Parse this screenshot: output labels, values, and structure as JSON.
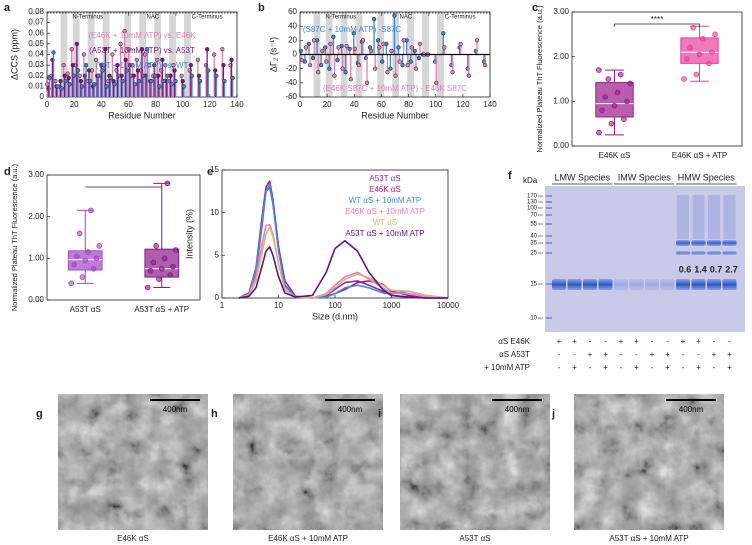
{
  "chart_data": [
    {
      "panel": "a",
      "type": "lollipop",
      "xlabel": "Residue Number",
      "ylabel": "ΔCCS (ppm)",
      "xlim": [
        0,
        140
      ],
      "xticks": [
        0,
        20,
        40,
        60,
        80,
        100,
        120,
        140
      ],
      "ylim": [
        0,
        0.08
      ],
      "yticks": [
        0,
        0.01,
        0.02,
        0.03,
        0.04,
        0.05,
        0.06,
        0.07,
        0.08
      ],
      "regions": [
        {
          "label": "N-Terminus",
          "range": [
            0,
            60
          ]
        },
        {
          "label": "NAC",
          "range": [
            61,
            95
          ]
        },
        {
          "label": "C-Terminus",
          "range": [
            96,
            140
          ]
        }
      ],
      "shaded": [
        [
          10,
          15
        ],
        [
          19,
          24
        ],
        [
          30,
          35
        ],
        [
          41,
          46
        ],
        [
          57,
          62
        ],
        [
          68,
          73
        ],
        [
          79,
          84
        ],
        [
          90,
          95
        ],
        [
          101,
          106
        ]
      ],
      "x": [
        1,
        4,
        7,
        10,
        13,
        16,
        19,
        22,
        25,
        28,
        31,
        34,
        37,
        40,
        43,
        46,
        49,
        52,
        55,
        58,
        61,
        64,
        67,
        70,
        73,
        76,
        79,
        82,
        85,
        88,
        91,
        94,
        100,
        106,
        112,
        118,
        124,
        130,
        136
      ],
      "series": [
        {
          "name": "(E46K + 10mM ATP) vs. E46K",
          "color": "#e57db5",
          "values": [
            0.012,
            0.02,
            0.015,
            0.01,
            0.03,
            0.022,
            0.045,
            0.03,
            0.02,
            0.04,
            0.015,
            0.025,
            0.035,
            0.02,
            0.03,
            0.015,
            0.04,
            0.025,
            0.05,
            0.062,
            0.045,
            0.03,
            0.035,
            0.025,
            0.04,
            0.03,
            0.02,
            0.035,
            0.025,
            0.03,
            0.015,
            0.03,
            0.02,
            0.025,
            0.035,
            0.03,
            0.04,
            0.045,
            0.03
          ]
        },
        {
          "name": "(A53T + 10mM ATP) vs. A53T",
          "color": "#7b1a7e",
          "values": [
            0.008,
            0.035,
            0.01,
            0.015,
            0.02,
            0.018,
            0.03,
            0.05,
            0.015,
            0.02,
            0.025,
            0.01,
            0.02,
            0.03,
            0.045,
            0.02,
            0.015,
            0.03,
            0.02,
            0.035,
            0.03,
            0.02,
            0.025,
            0.045,
            0.02,
            0.015,
            0.03,
            0.02,
            0.035,
            0.015,
            0.02,
            0.025,
            0.015,
            0.03,
            0.02,
            0.045,
            0.025,
            0.03,
            0.035
          ]
        },
        {
          "name": "(WT + 10mM ATP) vs. WT",
          "color": "#3d87d4",
          "values": [
            0.018,
            0.042,
            0.01,
            0.008,
            0.015,
            0.012,
            0.02,
            0.025,
            0.01,
            0.03,
            0.015,
            0.012,
            0.02,
            0.025,
            0.01,
            0.018,
            0.012,
            0.02,
            0.015,
            0.025,
            0.02,
            0.012,
            0.015,
            0.02,
            0.045,
            0.015,
            0.02,
            0.01,
            0.015,
            0.02,
            0.012,
            0.015,
            0.01,
            0.02,
            0.015,
            0.025,
            0.02,
            0.015,
            0.018
          ]
        }
      ]
    },
    {
      "panel": "b",
      "type": "lollipop",
      "xlabel": "Residue Number",
      "ylabel": "ΔΓ₂ (s⁻¹)",
      "xlim": [
        0,
        140
      ],
      "xticks": [
        0,
        20,
        40,
        60,
        80,
        100,
        120,
        140
      ],
      "ylim": [
        -60,
        60
      ],
      "yticks": [
        -60,
        -40,
        -20,
        0,
        20,
        40,
        60
      ],
      "regions": [
        {
          "label": "N-Terminus",
          "range": [
            0,
            60
          ]
        },
        {
          "label": "NAC",
          "range": [
            61,
            95
          ]
        },
        {
          "label": "C-Terminus",
          "range": [
            96,
            140
          ]
        }
      ],
      "shaded": [
        [
          10,
          15
        ],
        [
          19,
          24
        ],
        [
          30,
          35
        ],
        [
          41,
          46
        ],
        [
          57,
          62
        ],
        [
          68,
          73
        ],
        [
          79,
          84
        ],
        [
          90,
          95
        ],
        [
          101,
          106
        ]
      ],
      "x": [
        1,
        4,
        7,
        10,
        13,
        16,
        19,
        22,
        25,
        28,
        31,
        34,
        37,
        40,
        43,
        46,
        49,
        52,
        55,
        58,
        61,
        64,
        67,
        70,
        73,
        76,
        79,
        82,
        85,
        88,
        91,
        94,
        100,
        106,
        112,
        118,
        124,
        130,
        136
      ],
      "series": [
        {
          "name": "(S87C + 10mM ATP) -S87C",
          "color": "#3d87d4",
          "values": [
            5,
            -10,
            15,
            -5,
            20,
            -15,
            10,
            -20,
            25,
            -8,
            12,
            -25,
            8,
            30,
            -12,
            18,
            -5,
            10,
            50,
            20,
            -10,
            15,
            -20,
            55,
            10,
            -15,
            20,
            -10,
            5,
            -5,
            0,
            0,
            -10,
            30,
            -15,
            10,
            -20,
            5,
            -10
          ]
        },
        {
          "name": "(E46K S87C + 10mM ATP) - E46K S87C",
          "color": "#e57db5",
          "values": [
            -8,
            10,
            -15,
            20,
            -25,
            5,
            -10,
            15,
            -30,
            10,
            -20,
            12,
            -35,
            8,
            -15,
            20,
            -40,
            5,
            -20,
            10,
            15,
            -25,
            5,
            -30,
            -10,
            20,
            -15,
            10,
            -20,
            15,
            0,
            0,
            -40,
            10,
            -25,
            15,
            -30,
            20,
            -15
          ]
        }
      ]
    },
    {
      "panel": "c",
      "type": "box",
      "ylabel": "Normalized Plateau ThT Fluorescence (a.u.)",
      "annotation": "****",
      "ylim": [
        0,
        3
      ],
      "yticks": [
        {
          "value": 0,
          "label": "0.00"
        },
        {
          "value": 1,
          "label": "1.00"
        },
        {
          "value": 2,
          "label": "2.00"
        },
        {
          "value": 3,
          "label": "3.00"
        }
      ],
      "categories": [
        "E46K αS",
        "E46K αS + ATP"
      ],
      "boxes": [
        {
          "color": "#9b1a8a",
          "min": 0.25,
          "q1": 0.65,
          "median": 0.95,
          "q3": 1.42,
          "max": 1.7,
          "points": [
            0.3,
            0.5,
            0.6,
            0.8,
            0.9,
            1.0,
            1.1,
            1.2,
            1.4,
            1.5,
            1.6,
            1.7
          ]
        },
        {
          "color": "#e8409c",
          "min": 1.45,
          "q1": 1.85,
          "median": 2.1,
          "q3": 2.42,
          "max": 2.68,
          "points": [
            1.5,
            1.6,
            1.85,
            1.95,
            2.05,
            2.1,
            2.2,
            2.4,
            2.5,
            2.65
          ]
        }
      ]
    },
    {
      "panel": "d",
      "type": "box",
      "ylabel": "Normalized Plateau ThT Fluorescence (a.u.)",
      "ylim": [
        0,
        3
      ],
      "yticks": [
        {
          "value": 0,
          "label": "0.00"
        },
        {
          "value": 1,
          "label": "1.00"
        },
        {
          "value": 2,
          "label": "2.00"
        },
        {
          "value": 3,
          "label": "3.00"
        }
      ],
      "categories": [
        "A53T αS",
        "A53T αS + ATP"
      ],
      "boxes": [
        {
          "color": "#a447c4",
          "min": 0.4,
          "q1": 0.72,
          "median": 0.97,
          "q3": 1.18,
          "max": 2.15,
          "points": [
            0.4,
            0.55,
            0.75,
            0.85,
            0.95,
            1.0,
            1.05,
            1.15,
            1.3,
            1.6,
            2.15
          ]
        },
        {
          "color": "#8a1a8a",
          "min": 0.3,
          "q1": 0.55,
          "median": 0.75,
          "q3": 1.22,
          "max": 2.8,
          "points": [
            0.3,
            0.5,
            0.6,
            0.7,
            0.75,
            0.8,
            0.9,
            1.0,
            1.2,
            1.3,
            2.8
          ]
        }
      ]
    },
    {
      "panel": "e",
      "type": "line",
      "xlabel": "Size (d.nm)",
      "ylabel": "Intensity (%)",
      "xlog": true,
      "xlim": [
        1,
        10000
      ],
      "xticks": [
        1,
        10,
        100,
        1000,
        10000
      ],
      "ylim": [
        0,
        15
      ],
      "yticks": [
        0,
        5,
        10,
        15
      ],
      "x": [
        2,
        3,
        4,
        5,
        6,
        7,
        8,
        10,
        13,
        20,
        40,
        70,
        100,
        150,
        250,
        400,
        700,
        1000,
        2000,
        4000,
        10000
      ],
      "series": [
        {
          "name": "A53T αS",
          "color": "#8a2b9e",
          "values": [
            0,
            0.5,
            3,
            8,
            12.5,
            13,
            11,
            6,
            2,
            0.2,
            0,
            0.3,
            1,
            1.8,
            2,
            1.5,
            0.8,
            0.3,
            0.1,
            0,
            0
          ]
        },
        {
          "name": "E46K αS",
          "color": "#b0177d",
          "values": [
            0,
            0.6,
            3.5,
            9,
            13,
            13.7,
            11.5,
            6,
            1.5,
            0.1,
            0,
            0.2,
            0.5,
            1,
            1.8,
            2,
            1.6,
            0.8,
            0.3,
            0,
            0
          ]
        },
        {
          "name": "WT αS + 10mM ATP",
          "color": "#3d8fd9",
          "values": [
            0,
            0.5,
            3.2,
            8.5,
            12.5,
            13.3,
            11,
            5.5,
            1.4,
            0.1,
            0,
            0.1,
            0.5,
            1.2,
            1.5,
            1.2,
            0.6,
            0.5,
            0.8,
            0.3,
            0
          ]
        },
        {
          "name": "E46K αS + 10mM ATP",
          "color": "#e87fb6",
          "values": [
            0,
            0.4,
            2.5,
            6,
            8.5,
            8.6,
            7.5,
            4,
            1,
            0.1,
            0,
            0.5,
            1.5,
            2.5,
            3,
            2.2,
            1.2,
            0.6,
            0.5,
            0.2,
            0
          ]
        },
        {
          "name": "WT αS",
          "color": "#d9b37a",
          "values": [
            0,
            0.3,
            2,
            5,
            7.5,
            8.3,
            7.2,
            4,
            1,
            0.1,
            0,
            0.4,
            1.2,
            2.2,
            2.8,
            2.4,
            1.5,
            0.9,
            0.8,
            0.3,
            0
          ]
        },
        {
          "name": "A53T αS + 10mM ATP",
          "color": "#5e1480",
          "values": [
            0,
            0.2,
            1.2,
            3.5,
            5.5,
            6,
            5,
            2.5,
            0.6,
            0.1,
            0.3,
            3,
            5.8,
            6.7,
            5.5,
            3,
            1,
            0.3,
            0.1,
            0,
            0
          ]
        }
      ]
    }
  ],
  "gel": {
    "panel": "f",
    "unit": "kDa",
    "markers": [
      "170",
      "130",
      "100",
      "70",
      "55",
      "40",
      "35",
      "25",
      "15",
      "10"
    ],
    "species": [
      "LMW Species",
      "IMW Species",
      "HMW Species"
    ],
    "ratios": [
      "0.6",
      "1.4",
      "0.7",
      "2.7"
    ],
    "rows": [
      {
        "label": "αS E46K",
        "signs": [
          "+",
          "+",
          "-",
          "-",
          "+",
          "+",
          "-",
          "-",
          "+",
          "+",
          "-",
          "-"
        ]
      },
      {
        "label": "αS A53T",
        "signs": [
          "-",
          "-",
          "+",
          "+",
          "-",
          "-",
          "+",
          "+",
          "-",
          "-",
          "+",
          "+"
        ]
      },
      {
        "label": "+ 10mM ATP",
        "signs": [
          "-",
          "+",
          "-",
          "+",
          "-",
          "+",
          "-",
          "+",
          "-",
          "+",
          "-",
          "+"
        ]
      }
    ]
  },
  "micrographs": [
    {
      "panel": "g",
      "caption": "E46K αS",
      "scale": "400nm"
    },
    {
      "panel": "h",
      "caption": "E46K αS + 10mM ATP",
      "scale": "400nm"
    },
    {
      "panel": "i",
      "caption": "A53T αS",
      "scale": "400nm"
    },
    {
      "panel": "j",
      "caption": "A53T αS + 10mM ATP",
      "scale": "400nm"
    }
  ]
}
